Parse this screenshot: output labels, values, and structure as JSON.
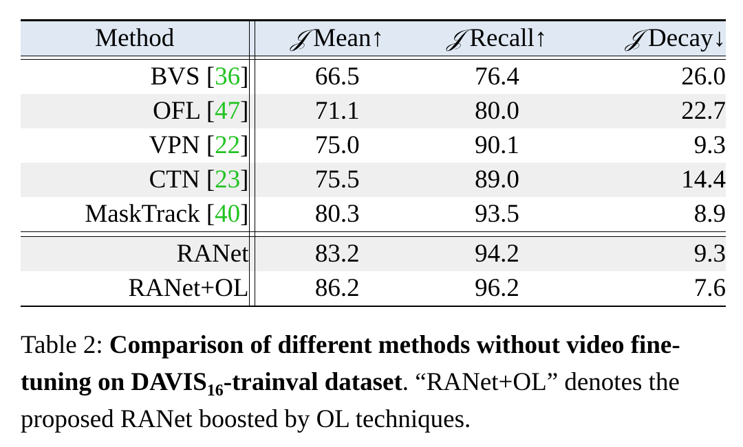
{
  "table": {
    "headers": {
      "method": "Method",
      "j_symbol": "𝒥",
      "mean": "Mean↑",
      "recall": "Recall↑",
      "decay": "Decay↓"
    },
    "group1": [
      {
        "name": "BVS",
        "ref": "36",
        "mean": "66.5",
        "recall": "76.4",
        "decay": "26.0"
      },
      {
        "name": "OFL",
        "ref": "47",
        "mean": "71.1",
        "recall": "80.0",
        "decay": "22.7"
      },
      {
        "name": "VPN",
        "ref": "22",
        "mean": "75.0",
        "recall": "90.1",
        "decay": "9.3"
      },
      {
        "name": "CTN",
        "ref": "23",
        "mean": "75.5",
        "recall": "89.0",
        "decay": "14.4"
      },
      {
        "name": "MaskTrack",
        "ref": "40",
        "mean": "80.3",
        "recall": "93.5",
        "decay": "8.9"
      }
    ],
    "group2": [
      {
        "name": "RANet",
        "mean": "83.2",
        "recall": "94.2",
        "decay": "9.3"
      },
      {
        "name": "RANet+OL",
        "mean": "86.2",
        "recall": "96.2",
        "decay": "7.6"
      }
    ]
  },
  "caption": {
    "label": "Table 2:",
    "bold_part1": "Comparison of different methods without video fine-tuning on DAVIS",
    "subscript": "16",
    "bold_part2": "-trainval dataset",
    "rest": ". “RANet+OL” denotes the proposed RANet boosted by OL techniques."
  }
}
